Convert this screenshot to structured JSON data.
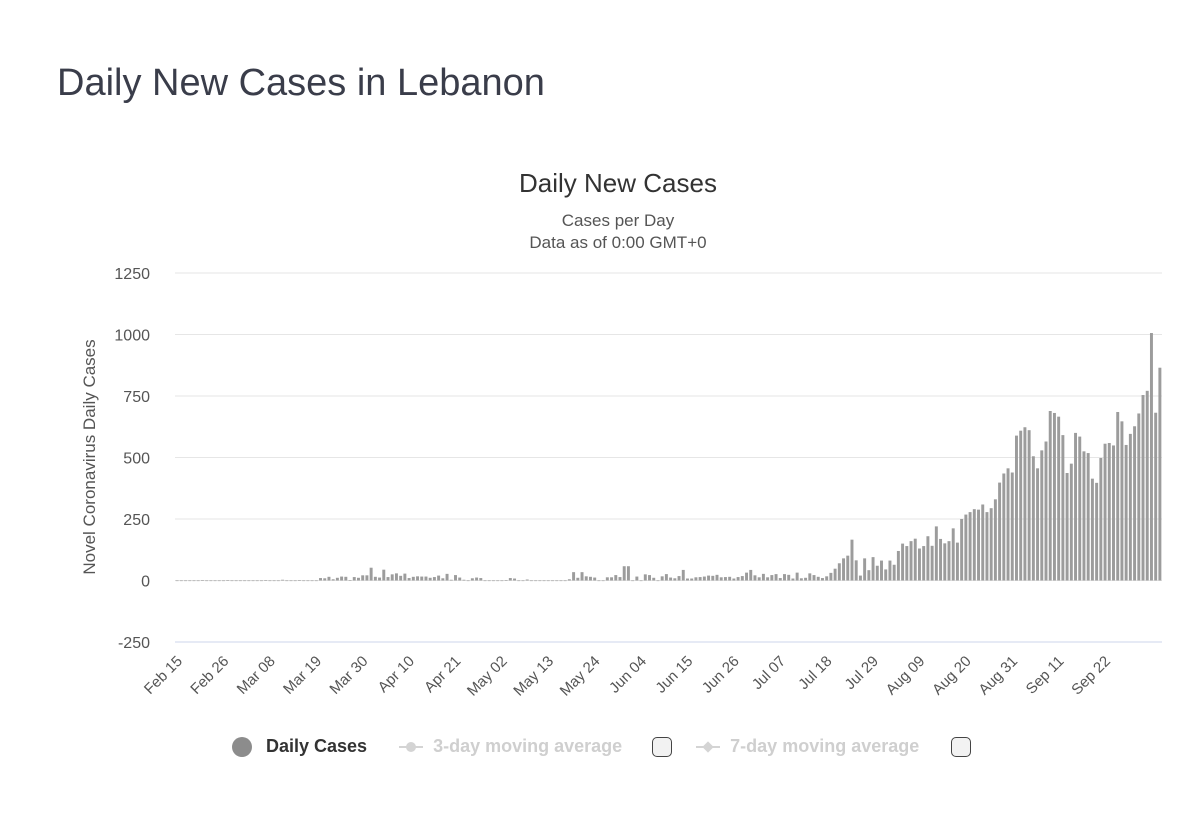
{
  "page": {
    "title": "Daily New Cases in Lebanon"
  },
  "legend": {
    "daily_label": "Daily Cases",
    "avg3_label": "3-day moving average",
    "avg7_label": "7-day moving average"
  },
  "colors": {
    "bar": "#9c9c9c",
    "grid": "#e6e6e6",
    "baseline": "#ccd6eb",
    "legend_dot": "#8c8c8c"
  },
  "chart_data": {
    "type": "bar",
    "title": "Daily New Cases",
    "subtitle_line1": "Cases per Day",
    "subtitle_line2": "Data as of 0:00 GMT+0",
    "ylabel": "Novel Coronavirus Daily Cases",
    "xlabel": "",
    "ylim": [
      -250,
      1250
    ],
    "yticks": [
      -250,
      0,
      250,
      500,
      750,
      1000,
      1250
    ],
    "start_date": "Feb 15",
    "tick_every": 11,
    "xtick_labels": [
      "Feb 15",
      "Feb 26",
      "Mar 08",
      "Mar 19",
      "Mar 30",
      "Apr 10",
      "Apr 21",
      "May 02",
      "May 13",
      "May 24",
      "Jun 04",
      "Jun 15",
      "Jun 26",
      "Jul 07",
      "Jul 18",
      "Jul 29",
      "Aug 09",
      "Aug 20",
      "Aug 31",
      "Sep 11",
      "Sep 22"
    ],
    "series": [
      {
        "name": "Daily Cases",
        "values": [
          0,
          0,
          0,
          0,
          0,
          0,
          1,
          0,
          0,
          0,
          0,
          0,
          1,
          0,
          0,
          0,
          0,
          0,
          0,
          0,
          0,
          2,
          0,
          0,
          0,
          3,
          0,
          0,
          0,
          2,
          0,
          0,
          0,
          0,
          10,
          9,
          15,
          5,
          11,
          16,
          15,
          2,
          14,
          11,
          21,
          21,
          52,
          15,
          12,
          44,
          14,
          25,
          29,
          19,
          28,
          10,
          15,
          17,
          16,
          16,
          11,
          14,
          20,
          9,
          27,
          3,
          22,
          12,
          3,
          0,
          9,
          12,
          10,
          0,
          0,
          0,
          0,
          0,
          2,
          10,
          8,
          0,
          0,
          4,
          0,
          0,
          0,
          0,
          0,
          0,
          0,
          0,
          0,
          5,
          34,
          11,
          34,
          17,
          15,
          12,
          0,
          0,
          13,
          13,
          22,
          14,
          58,
          58,
          0,
          16,
          0,
          25,
          22,
          11,
          0,
          17,
          26,
          12,
          9,
          18,
          43,
          8,
          8,
          13,
          14,
          16,
          20,
          19,
          23,
          13,
          14,
          15,
          8,
          14,
          18,
          32,
          43,
          21,
          13,
          27,
          13,
          22,
          26,
          10,
          26,
          23,
          8,
          32,
          9,
          11,
          29,
          22,
          15,
          10,
          17,
          31,
          48,
          70,
          90,
          101,
          166,
          82,
          20,
          90,
          42,
          95,
          60,
          81,
          45,
          81,
          64,
          120,
          150,
          140,
          160,
          170,
          130,
          140,
          180,
          141,
          220,
          169,
          151,
          160,
          212,
          154,
          250,
          268,
          278,
          290,
          288,
          309,
          278,
          294,
          330,
          398,
          435,
          456,
          439,
          589,
          609,
          623,
          611,
          505,
          456,
          529,
          565,
          689,
          681,
          666,
          591,
          437,
          475,
          600,
          585,
          525,
          518,
          414,
          397,
          498,
          556,
          559,
          549,
          685,
          647,
          551,
          596,
          627,
          679,
          754,
          771,
          1006,
          682,
          865
        ]
      }
    ]
  }
}
